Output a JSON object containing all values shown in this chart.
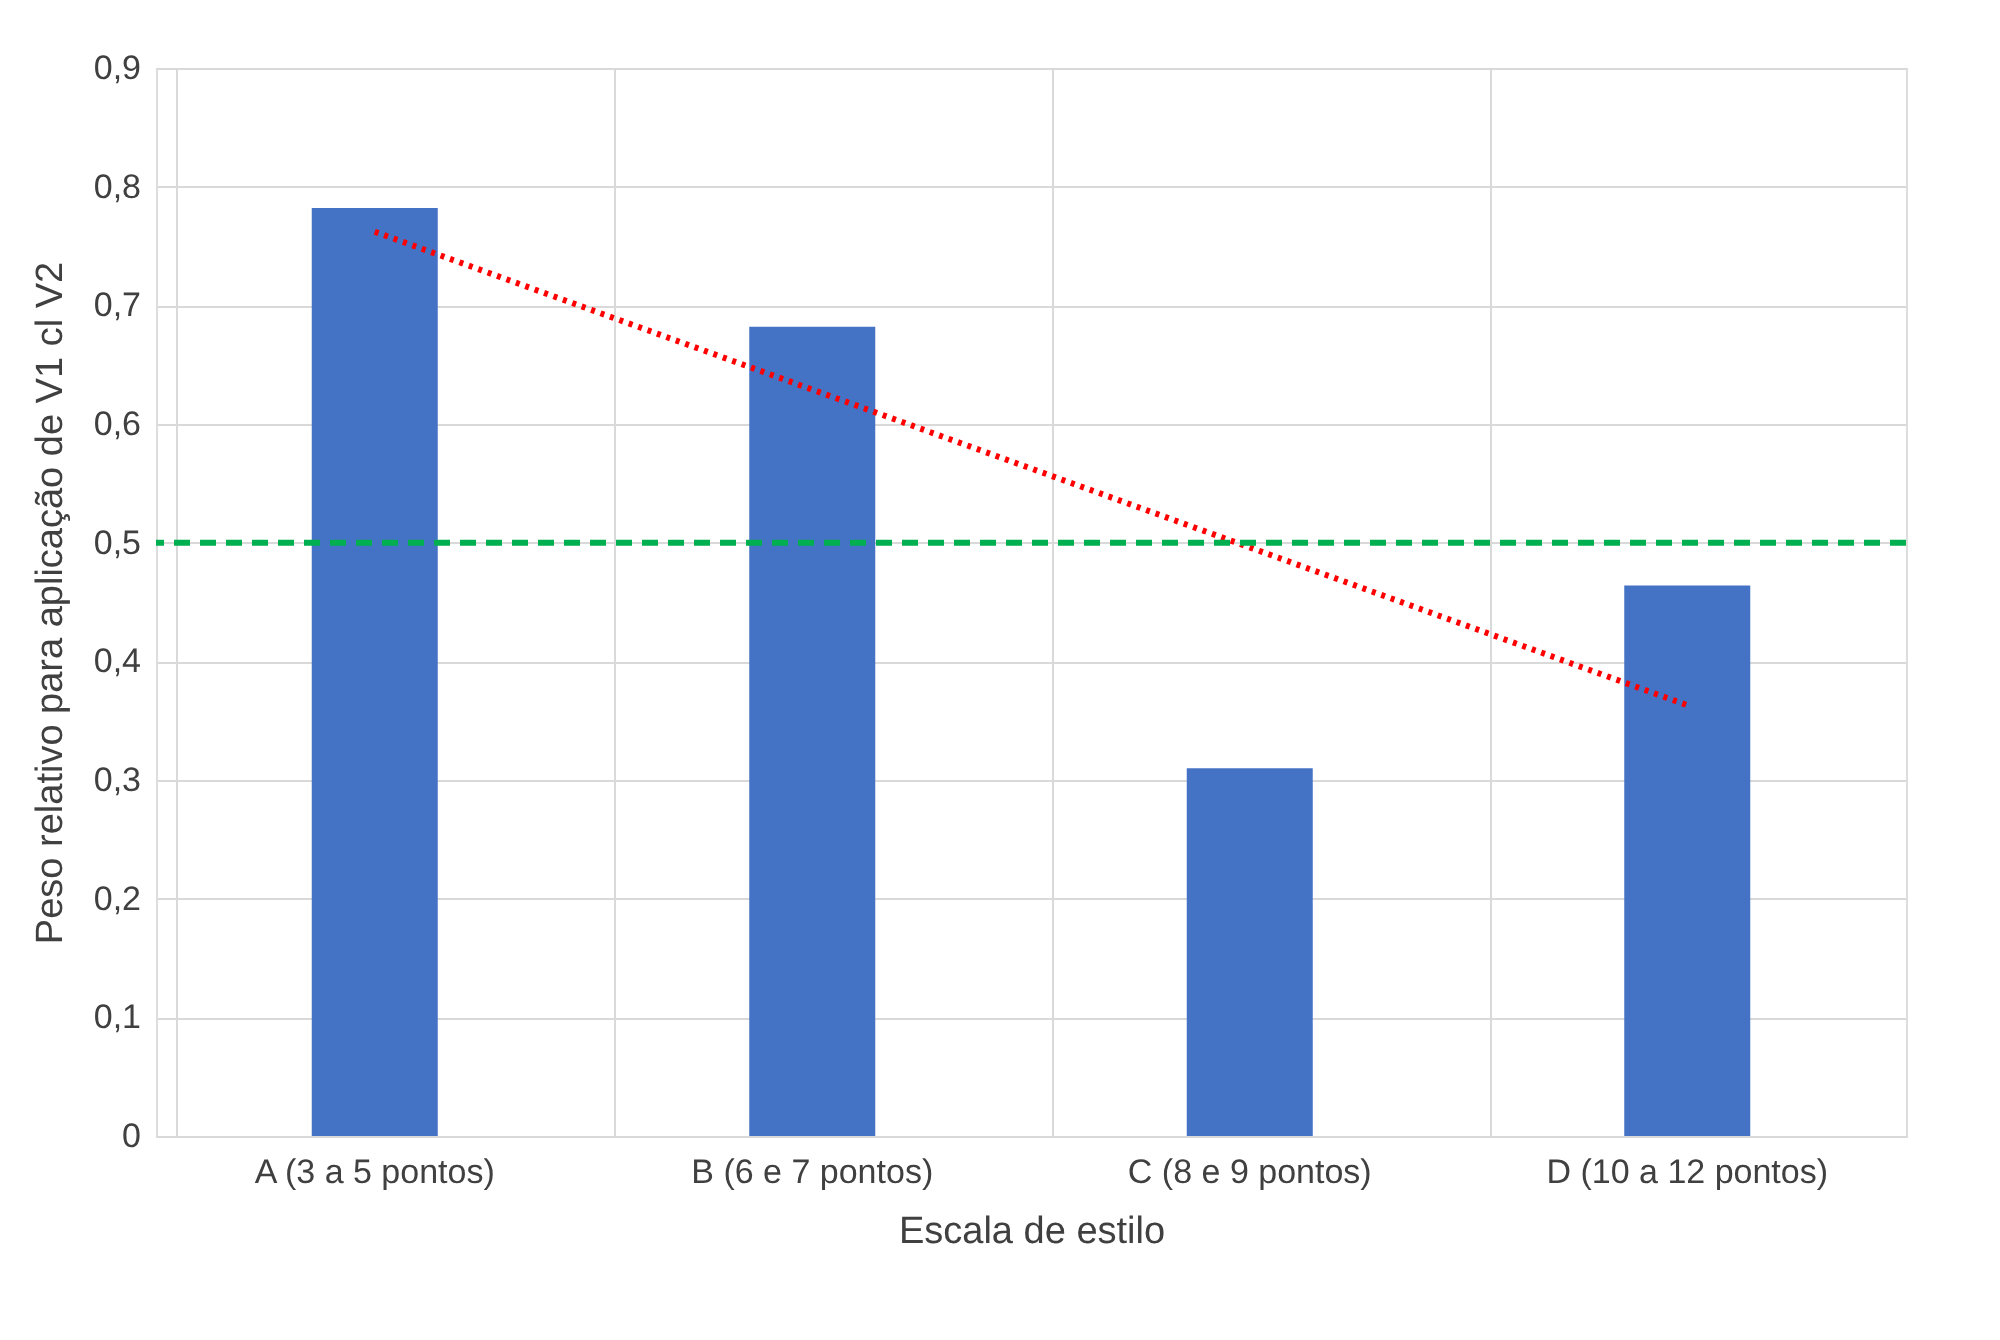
{
  "chart_data": {
    "type": "bar",
    "xlabel": "Escala de estilo",
    "ylabel": "Peso relativo para aplicação de V1 cl V2",
    "categories": [
      "A (3 a 5 pontos)",
      "B (6 e 7 pontos)",
      "C (8 e 9 pontos)",
      "D (10 a 12 pontos)"
    ],
    "series": [
      {
        "color": "#4472c4",
        "values": [
          0.782,
          0.682,
          0.31,
          0.464
        ]
      },
      {
        "type": "line",
        "color": "#ff0000",
        "line_style": "dotted",
        "x": [
          "A (3 a 5 pontos)",
          "D (10 a 12 pontos)"
        ],
        "values": [
          0.762,
          0.363
        ]
      }
    ],
    "ylim": [
      0,
      0.9
    ],
    "yticks": [
      0,
      {
        "value": 0.1,
        "label": "0,1"
      },
      {
        "value": 0.2,
        "label": "0,2"
      },
      {
        "value": 0.3,
        "label": "0,3"
      },
      {
        "value": 0.4,
        "label": "0,4"
      },
      {
        "value": 0.5,
        "label": "0,5"
      },
      {
        "value": 0.6,
        "label": "0,6"
      },
      {
        "value": 0.7,
        "label": "0,7"
      },
      {
        "value": 0.8,
        "label": "0,8"
      },
      {
        "value": 0.9,
        "label": "0,9"
      }
    ],
    "ref_lines": [
      {
        "axis": "y",
        "value": 0.5,
        "color": "#00b050",
        "line_style": "dashed"
      }
    ],
    "grid": true
  }
}
